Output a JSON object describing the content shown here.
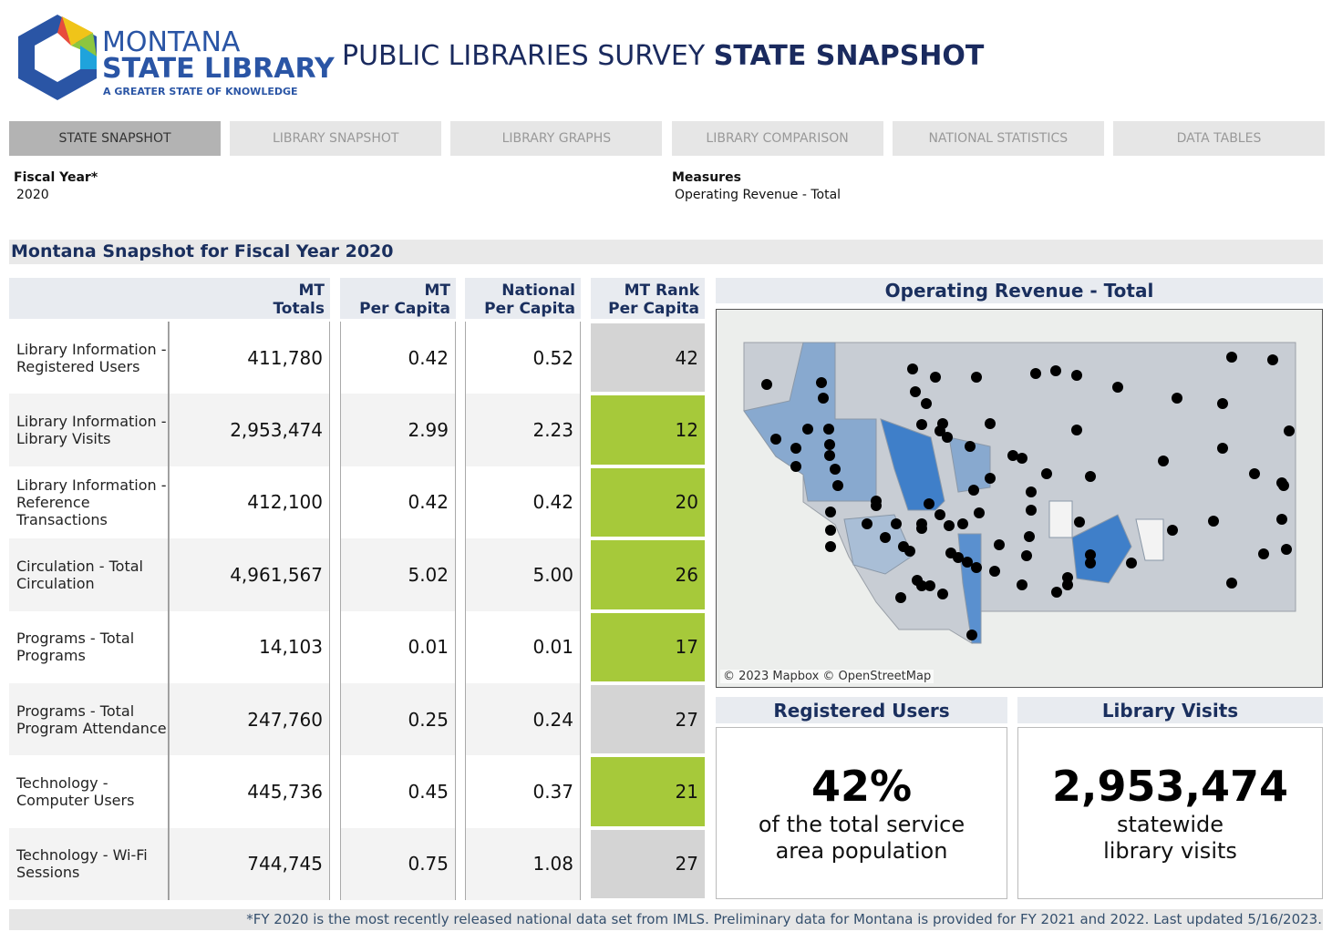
{
  "header": {
    "logo_line1": "MONTANA",
    "logo_line2": "STATE LIBRARY",
    "logo_tagline": "A GREATER STATE OF KNOWLEDGE",
    "title_light": "PUBLIC LIBRARIES SURVEY",
    "title_bold": "STATE SNAPSHOT"
  },
  "tabs": [
    "STATE SNAPSHOT",
    "LIBRARY SNAPSHOT",
    "LIBRARY GRAPHS",
    "LIBRARY COMPARISON",
    "NATIONAL STATISTICS",
    "DATA TABLES"
  ],
  "active_tab": 0,
  "filters": [
    {
      "label": "Fiscal Year*",
      "value": "2020"
    },
    {
      "label": "Measures",
      "value": "Operating Revenue - Total"
    }
  ],
  "section_title": "Montana Snapshot for Fiscal Year 2020",
  "table": {
    "columns": [
      [
        "MT",
        "Totals"
      ],
      [
        "MT",
        "Per Capita"
      ],
      [
        "National",
        "Per Capita"
      ],
      [
        "MT Rank",
        "Per Capita"
      ]
    ],
    "rows": [
      {
        "label": "Library Information - Registered Users",
        "total": "411,780",
        "mt_per_capita": "0.42",
        "national_per_capita": "0.52",
        "rank": 42,
        "highlight": false
      },
      {
        "label": "Library Information - Library Visits",
        "total": "2,953,474",
        "mt_per_capita": "2.99",
        "national_per_capita": "2.23",
        "rank": 12,
        "highlight": true
      },
      {
        "label": "Library Information - Reference Transactions",
        "total": "412,100",
        "mt_per_capita": "0.42",
        "national_per_capita": "0.42",
        "rank": 20,
        "highlight": true
      },
      {
        "label": "Circulation - Total Circulation",
        "total": "4,961,567",
        "mt_per_capita": "5.02",
        "national_per_capita": "5.00",
        "rank": 26,
        "highlight": true
      },
      {
        "label": "Programs - Total Programs",
        "total": "14,103",
        "mt_per_capita": "0.01",
        "national_per_capita": "0.01",
        "rank": 17,
        "highlight": true
      },
      {
        "label": "Programs - Total Program Attendance",
        "total": "247,760",
        "mt_per_capita": "0.25",
        "national_per_capita": "0.24",
        "rank": 27,
        "highlight": false
      },
      {
        "label": "Technology - Computer Users",
        "total": "445,736",
        "mt_per_capita": "0.45",
        "national_per_capita": "0.37",
        "rank": 21,
        "highlight": true
      },
      {
        "label": "Technology - Wi-Fi Sessions",
        "total": "744,745",
        "mt_per_capita": "0.75",
        "national_per_capita": "1.08",
        "rank": 27,
        "highlight": false
      }
    ]
  },
  "map": {
    "title": "Operating Revenue - Total",
    "attribution": "© 2023 Mapbox © OpenStreetMap"
  },
  "kpis": [
    {
      "title": "Registered Users",
      "value": "42%",
      "caption": [
        "of the total service",
        "area population"
      ]
    },
    {
      "title": "Library Visits",
      "value": "2,953,474",
      "caption": [
        "statewide",
        "library visits"
      ]
    }
  ],
  "footnote": "*FY 2020 is the most recently released national data set from IMLS. Preliminary data for Montana is provided for FY 2021 and 2022. Last updated 5/16/2023."
}
